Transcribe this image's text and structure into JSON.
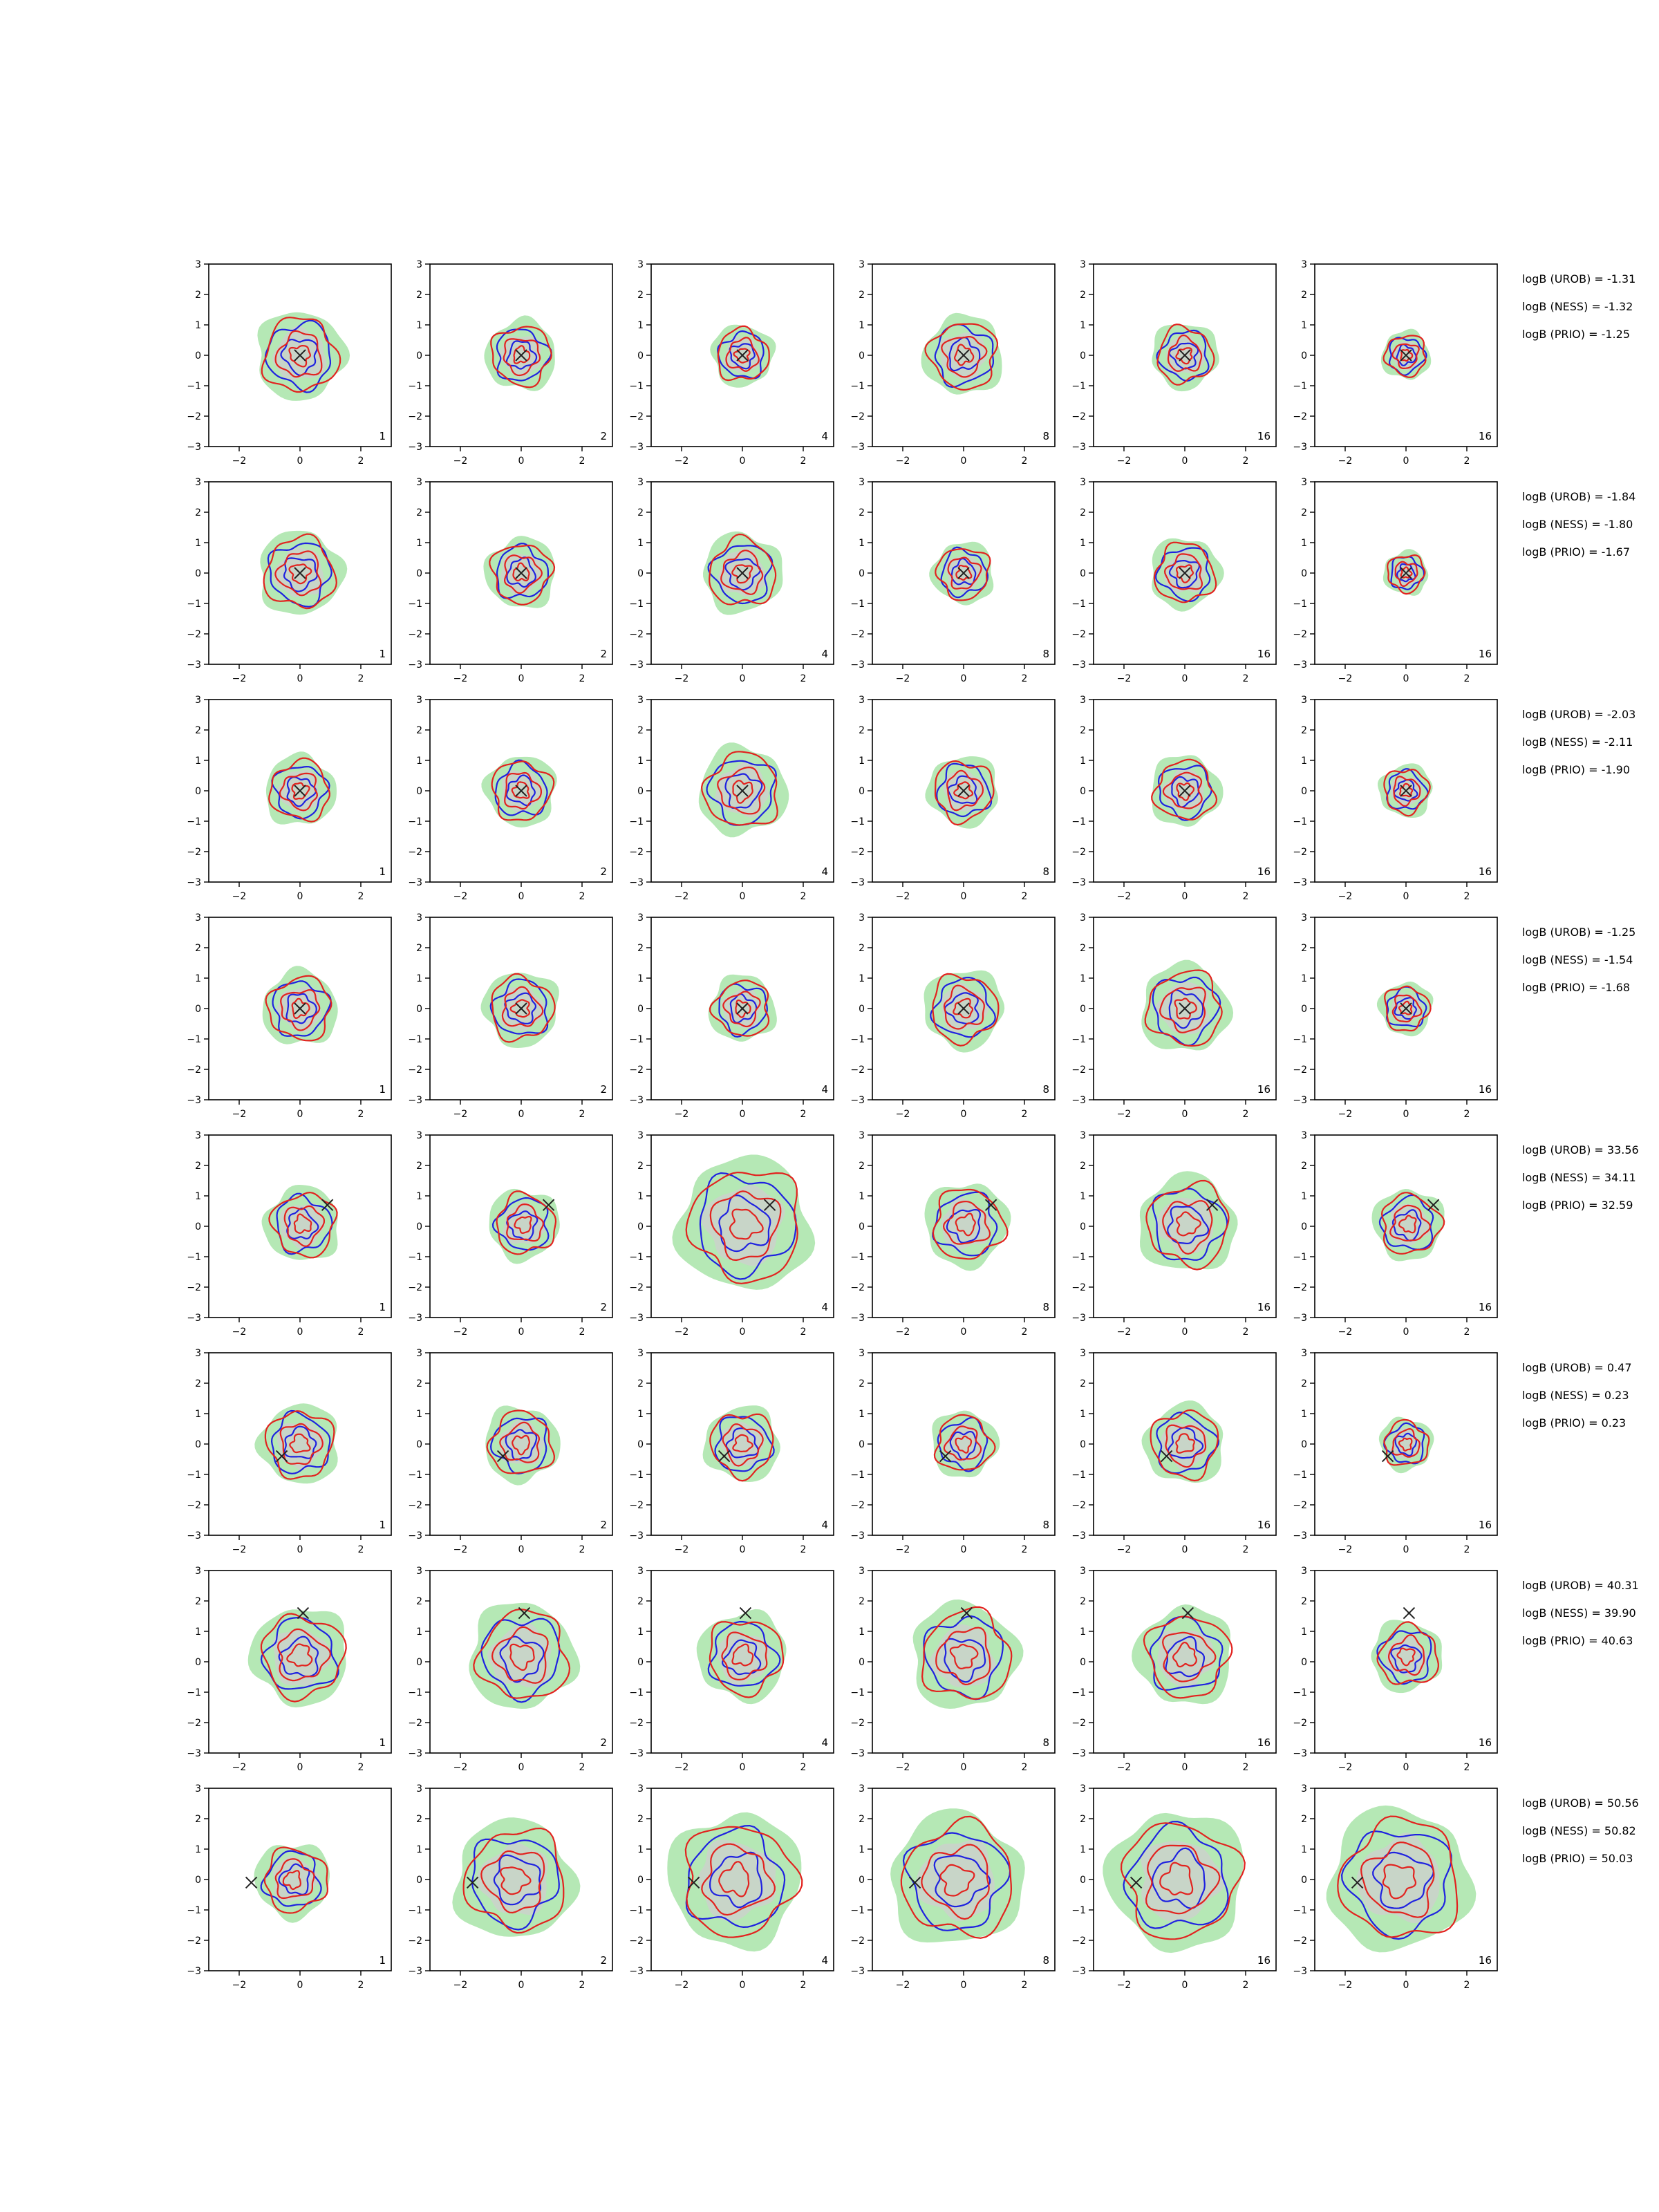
{
  "chart_data": {
    "type": "contour",
    "layout": {
      "rows": 8,
      "columns": 6
    },
    "xlim": [
      -3,
      3
    ],
    "ylim": [
      -3,
      3
    ],
    "xticks": [
      "−2",
      "0",
      "2"
    ],
    "yticks": [
      "3",
      "2",
      "1",
      "0",
      "−1",
      "−2",
      "−3"
    ],
    "panel_corner_labels": [
      "1",
      "2",
      "4",
      "8",
      "16",
      "16"
    ],
    "grid": false,
    "colors": {
      "blue": "#1f22e0",
      "red": "#e2231f",
      "green_fill": "#b5e8b5",
      "gray_fill": "#cfcfcf",
      "marker": "#222222"
    },
    "rows": [
      {
        "marker": [
          0,
          0
        ],
        "evidence": [
          "logB (UROB) = -1.31",
          "logB (NESS) = -1.32",
          "logB (PRIO) = -1.25"
        ],
        "scale": [
          1.0,
          0.8,
          0.7,
          0.9,
          0.75,
          0.55
        ],
        "shift": 0
      },
      {
        "marker": [
          0,
          0
        ],
        "evidence": [
          "logB (UROB) = -1.84",
          "logB (NESS) = -1.80",
          "logB (PRIO) = -1.67"
        ],
        "scale": [
          0.95,
          0.8,
          0.9,
          0.7,
          0.8,
          0.5
        ],
        "shift": 0
      },
      {
        "marker": [
          0,
          0
        ],
        "evidence": [
          "logB (UROB) = -2.03",
          "logB (NESS) = -2.11",
          "logB (PRIO) = -1.90"
        ],
        "scale": [
          0.8,
          0.8,
          1.0,
          0.8,
          0.8,
          0.6
        ],
        "shift": 0
      },
      {
        "marker": [
          0,
          0
        ],
        "evidence": [
          "logB (UROB) = -1.25",
          "logB (NESS) = -1.54",
          "logB (PRIO) = -1.68"
        ],
        "scale": [
          0.85,
          0.85,
          0.75,
          0.9,
          1.0,
          0.6
        ],
        "shift": 0
      },
      {
        "marker": [
          0.9,
          0.7
        ],
        "evidence": [
          "logB (UROB) = 33.56",
          "logB (NESS) = 34.11",
          "logB (PRIO) = 32.59"
        ],
        "scale": [
          0.85,
          0.8,
          1.5,
          0.95,
          1.1,
          0.8
        ],
        "shift": 0.3
      },
      {
        "marker": [
          -0.6,
          -0.4
        ],
        "evidence": [
          "logB (UROB) = 0.47",
          "logB (NESS) = 0.23",
          "logB (PRIO) = 0.23"
        ],
        "scale": [
          0.9,
          0.85,
          0.85,
          0.75,
          0.9,
          0.6
        ],
        "shift": 0
      },
      {
        "marker": [
          0.1,
          1.6
        ],
        "evidence": [
          "logB (UROB) = 40.31",
          "logB (NESS) = 39.90",
          "logB (PRIO) = 40.63"
        ],
        "scale": [
          1.1,
          1.2,
          1.0,
          1.2,
          1.1,
          0.8
        ],
        "shift": 0.4
      },
      {
        "marker": [
          -1.6,
          -0.1
        ],
        "evidence": [
          "logB (UROB) = 50.56",
          "logB (NESS) = 50.82",
          "logB (PRIO) = 50.03"
        ],
        "scale": [
          0.85,
          1.35,
          1.5,
          1.5,
          1.55,
          1.6
        ],
        "shift": 0.5
      }
    ]
  }
}
